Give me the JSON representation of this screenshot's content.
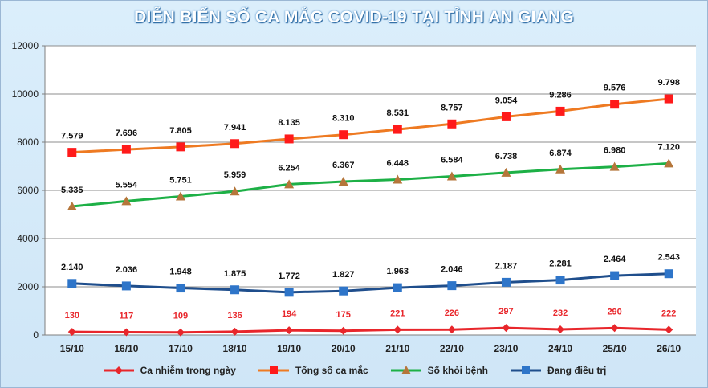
{
  "chart_data": {
    "type": "line",
    "title": "DIỄN BIẾN SỐ CA MẮC COVID-19 TẠI TỈNH AN GIANG",
    "categories": [
      "15/10",
      "16/10",
      "17/10",
      "18/10",
      "19/10",
      "20/10",
      "21/10",
      "22/10",
      "23/10",
      "24/10",
      "25/10",
      "26/10"
    ],
    "ylim": [
      0,
      12000
    ],
    "yticks": [
      "0",
      "2000",
      "4000",
      "6000",
      "8000",
      "10000",
      "12000"
    ],
    "grid": true,
    "legend_position": "bottom",
    "series": [
      {
        "name": "Ca nhiễm trong ngày",
        "color": "#e8262b",
        "marker": "diamond",
        "values": [
          130,
          117,
          109,
          136,
          194,
          175,
          221,
          226,
          297,
          232,
          290,
          222
        ],
        "labels": [
          "130",
          "117",
          "109",
          "136",
          "194",
          "175",
          "221",
          "226",
          "297",
          "232",
          "290",
          "222"
        ]
      },
      {
        "name": "Tổng số ca mắc",
        "color": "#ee7a22",
        "marker": "square",
        "marker_color": "#ff1a1a",
        "values": [
          7579,
          7696,
          7805,
          7941,
          8135,
          8310,
          8531,
          8757,
          9054,
          9286,
          9576,
          9798
        ],
        "labels": [
          "7.579",
          "7.696",
          "7.805",
          "7.941",
          "8.135",
          "8.310",
          "8.531",
          "8.757",
          "9.054",
          "9.286",
          "9.576",
          "9.798"
        ]
      },
      {
        "name": "Số khỏi bệnh",
        "color": "#1db046",
        "marker": "triangle",
        "marker_color": "#b5763a",
        "values": [
          5335,
          5554,
          5751,
          5959,
          6254,
          6367,
          6448,
          6584,
          6738,
          6874,
          6980,
          7120
        ],
        "labels": [
          "5.335",
          "5.554",
          "5.751",
          "5.959",
          "6.254",
          "6.367",
          "6.448",
          "6.584",
          "6.738",
          "6.874",
          "6.980",
          "7.120"
        ]
      },
      {
        "name": "Đang điều trị",
        "color": "#1f4e8c",
        "marker": "square",
        "marker_color": "#2e75c9",
        "values": [
          2140,
          2036,
          1948,
          1875,
          1772,
          1827,
          1963,
          2046,
          2187,
          2281,
          2464,
          2543
        ],
        "labels": [
          "2.140",
          "2.036",
          "1.948",
          "1.875",
          "1.772",
          "1.827",
          "1.963",
          "2.046",
          "2.187",
          "2.281",
          "2.464",
          "2.543"
        ]
      }
    ]
  }
}
